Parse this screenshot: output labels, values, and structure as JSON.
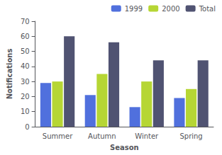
{
  "chart_data": {
    "type": "bar",
    "xlabel": "Season",
    "ylabel": "Notifications",
    "categories": [
      "Summer",
      "Autumn",
      "Winter",
      "Spring"
    ],
    "series": [
      {
        "name": "1999",
        "values": [
          29,
          21,
          13,
          19
        ]
      },
      {
        "name": "2000",
        "values": [
          30,
          35,
          30,
          25
        ]
      },
      {
        "name": "Total",
        "values": [
          60,
          56,
          44,
          44
        ]
      }
    ],
    "ylim": [
      0,
      70
    ],
    "yticks": [
      0,
      10,
      20,
      30,
      40,
      50,
      60,
      70
    ],
    "grid": false,
    "legend": "upper right"
  }
}
